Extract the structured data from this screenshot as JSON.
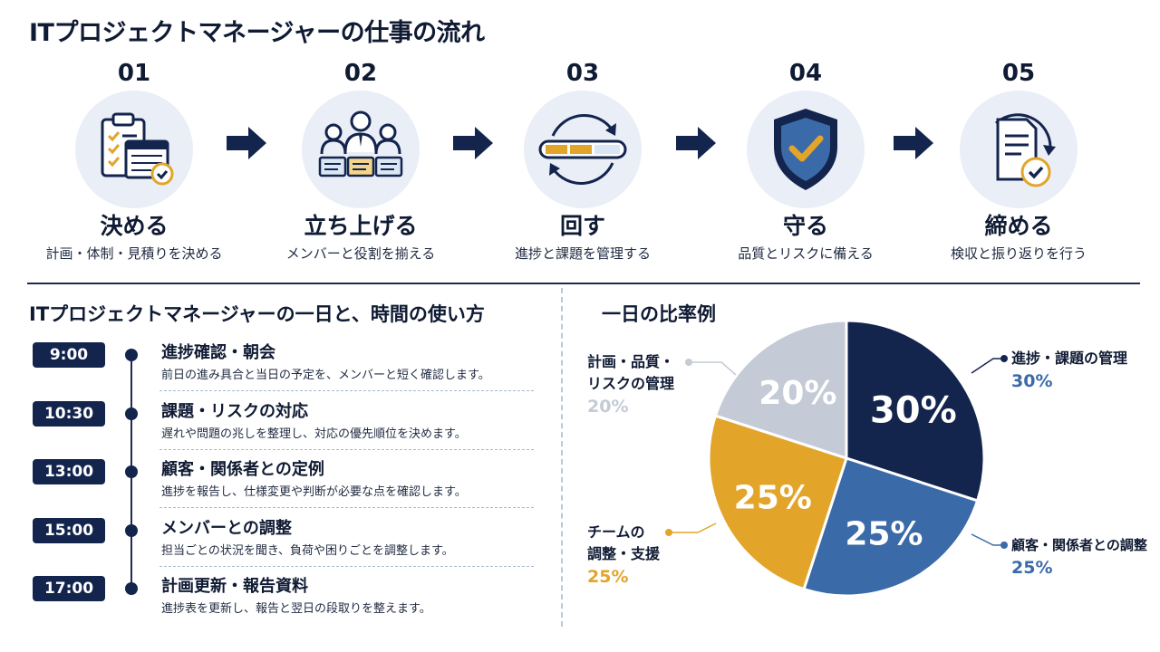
{
  "title": "ITプロジェクトマネージャーの仕事の流れ",
  "steps": [
    {
      "num": "01",
      "title": "決める",
      "desc": "計画・体制・見積りを決める",
      "icon": "clipboard-calendar-icon"
    },
    {
      "num": "02",
      "title": "立ち上げる",
      "desc": "メンバーと役割を揃える",
      "icon": "team-members-icon"
    },
    {
      "num": "03",
      "title": "回す",
      "desc": "進捗と課題を管理する",
      "icon": "progress-cycle-icon"
    },
    {
      "num": "04",
      "title": "守る",
      "desc": "品質とリスクに備える",
      "icon": "shield-check-icon"
    },
    {
      "num": "05",
      "title": "締める",
      "desc": "検収と振り返りを行う",
      "icon": "document-check-icon"
    }
  ],
  "day": {
    "title": "ITプロジェクトマネージャーの一日と、時間の使い方",
    "items": [
      {
        "time": "9:00",
        "head": "進捗確認・朝会",
        "desc": "前日の進み具合と当日の予定を、メンバーと短く確認します。"
      },
      {
        "time": "10:30",
        "head": "課題・リスクの対応",
        "desc": "遅れや問題の兆しを整理し、対応の優先順位を決めます。"
      },
      {
        "time": "13:00",
        "head": "顧客・関係者との定例",
        "desc": "進捗を報告し、仕様変更や判断が必要な点を確認します。"
      },
      {
        "time": "15:00",
        "head": "メンバーとの調整",
        "desc": "担当ごとの状況を聞き、負荷や困りごとを調整します。"
      },
      {
        "time": "17:00",
        "head": "計画更新・報告資料",
        "desc": "進捗表を更新し、報告と翌日の段取りを整えます。"
      }
    ]
  },
  "chart_data": {
    "type": "pie",
    "title": "一日の比率例",
    "slices": [
      {
        "label": "進捗・課題の管理",
        "value": 30,
        "display": "30%",
        "color": "#13244d"
      },
      {
        "label": "顧客・関係者との調整",
        "value": 25,
        "display": "25%",
        "color": "#3b6aa8"
      },
      {
        "label": "チームの調整・支援",
        "value": 25,
        "display": "25%",
        "color": "#e2a52a"
      },
      {
        "label": "計画・品質・リスクの管理",
        "value": 20,
        "display": "20%",
        "color": "#c4cbd6"
      }
    ]
  },
  "pie_labels": {
    "s0": {
      "line1": "進捗・課題の管理",
      "pct": "30%"
    },
    "s1": {
      "line1": "顧客・関係者との調整",
      "pct": "25%"
    },
    "s2": {
      "line1": "チームの",
      "line2": "調整・支援",
      "pct": "25%"
    },
    "s3": {
      "line1": "計画・品質・",
      "line2": "リスクの管理",
      "pct": "20%"
    }
  },
  "colors": {
    "navy": "#13244d",
    "blue": "#3b6aa8",
    "gold": "#e2a52a",
    "gray": "#c4cbd6"
  }
}
